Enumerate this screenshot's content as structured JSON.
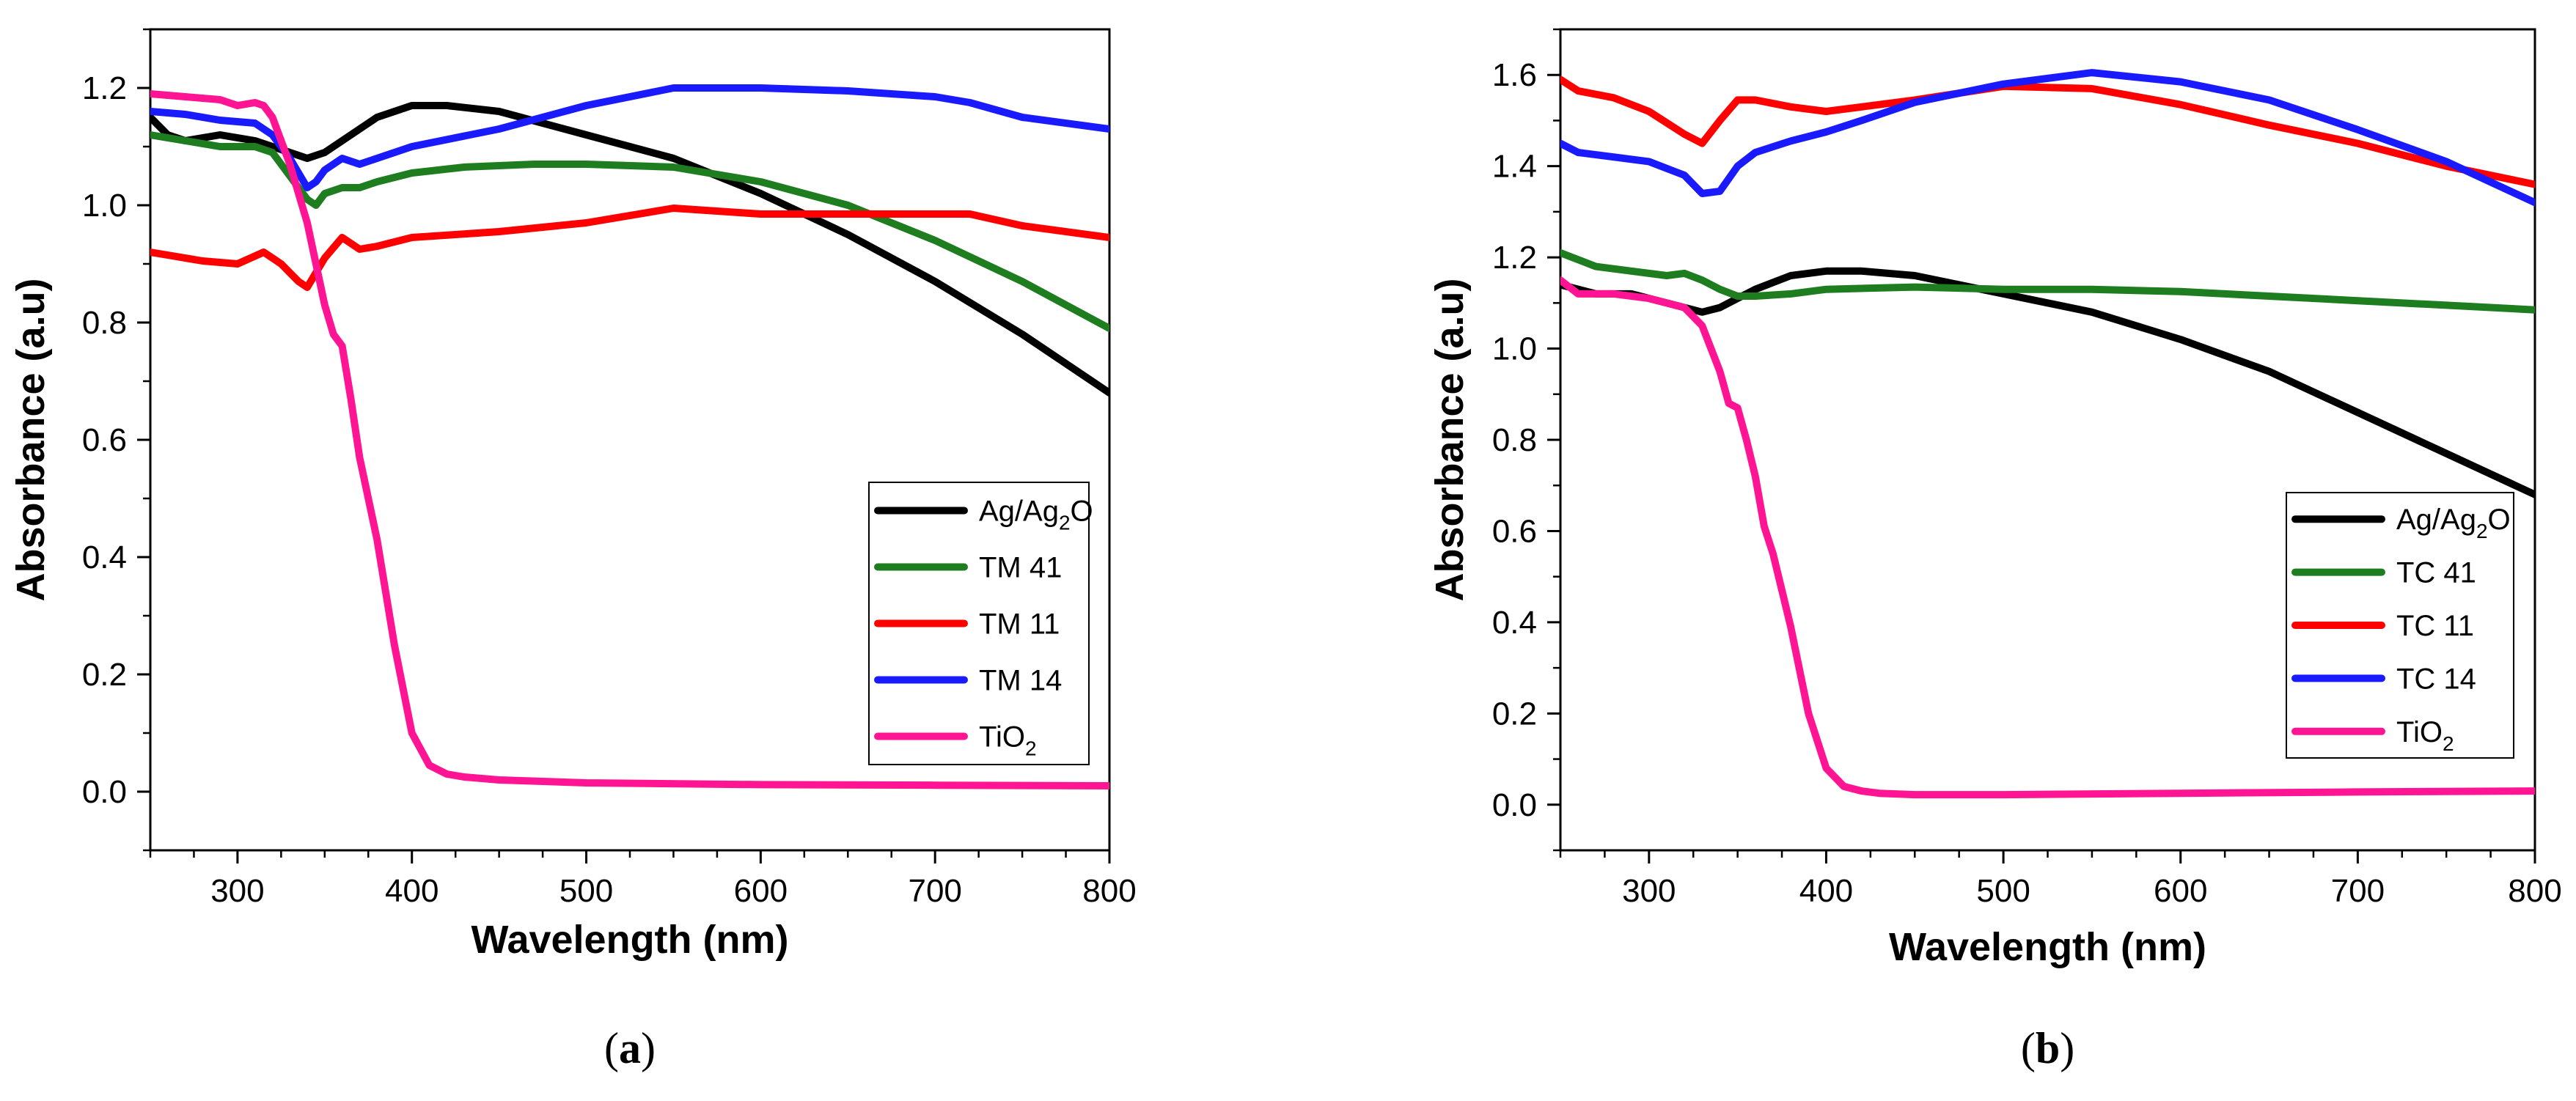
{
  "chart_data": [
    {
      "panel_label": "(a)",
      "panel_letter": "a",
      "type": "line",
      "xlabel": "Wavelength (nm)",
      "ylabel": "Absorbance (a.u)",
      "xlim": [
        250,
        800
      ],
      "ylim": [
        -0.1,
        1.3
      ],
      "xticks": [
        "300",
        "400",
        "500",
        "600",
        "700",
        "800"
      ],
      "yticks": [
        "0.0",
        "0.2",
        "0.4",
        "0.6",
        "0.8",
        "1.0",
        "1.2"
      ],
      "legend_position": "lower-right",
      "series": [
        {
          "name": "Ag/Ag2O",
          "label_main": "Ag/Ag",
          "label_sub": "2",
          "label_tail": "O",
          "color": "#000000",
          "x": [
            250,
            260,
            270,
            290,
            310,
            330,
            340,
            350,
            360,
            370,
            380,
            400,
            420,
            450,
            500,
            550,
            600,
            650,
            700,
            750,
            800
          ],
          "y": [
            1.15,
            1.12,
            1.11,
            1.12,
            1.11,
            1.09,
            1.08,
            1.09,
            1.11,
            1.13,
            1.15,
            1.17,
            1.17,
            1.16,
            1.12,
            1.08,
            1.02,
            0.95,
            0.87,
            0.78,
            0.68
          ]
        },
        {
          "name": "TM 41",
          "label_main": "TM 41",
          "label_sub": "",
          "label_tail": "",
          "color": "#1e7d1e",
          "x": [
            250,
            270,
            290,
            310,
            320,
            330,
            340,
            345,
            350,
            360,
            370,
            380,
            400,
            430,
            470,
            500,
            550,
            600,
            650,
            700,
            750,
            800
          ],
          "y": [
            1.12,
            1.11,
            1.1,
            1.1,
            1.09,
            1.05,
            1.01,
            1.0,
            1.02,
            1.03,
            1.03,
            1.04,
            1.055,
            1.065,
            1.07,
            1.07,
            1.065,
            1.04,
            1.0,
            0.94,
            0.87,
            0.79
          ]
        },
        {
          "name": "TM 11",
          "label_main": "TM 11",
          "label_sub": "",
          "label_tail": "",
          "color": "#ff0000",
          "x": [
            250,
            260,
            280,
            300,
            315,
            325,
            335,
            340,
            350,
            360,
            370,
            380,
            400,
            450,
            500,
            550,
            600,
            650,
            700,
            720,
            750,
            800
          ],
          "y": [
            0.92,
            0.915,
            0.905,
            0.9,
            0.92,
            0.9,
            0.87,
            0.86,
            0.91,
            0.945,
            0.925,
            0.93,
            0.945,
            0.955,
            0.97,
            0.995,
            0.985,
            0.985,
            0.985,
            0.985,
            0.965,
            0.945
          ]
        },
        {
          "name": "TM 14",
          "label_main": "TM 14",
          "label_sub": "",
          "label_tail": "",
          "color": "#1a1aff",
          "x": [
            250,
            270,
            290,
            310,
            320,
            330,
            340,
            345,
            350,
            360,
            370,
            380,
            400,
            450,
            500,
            550,
            600,
            650,
            700,
            720,
            750,
            800
          ],
          "y": [
            1.16,
            1.155,
            1.145,
            1.14,
            1.12,
            1.08,
            1.03,
            1.04,
            1.06,
            1.08,
            1.07,
            1.08,
            1.1,
            1.13,
            1.17,
            1.2,
            1.2,
            1.195,
            1.185,
            1.175,
            1.15,
            1.13
          ]
        },
        {
          "name": "TiO2",
          "label_main": "TiO",
          "label_sub": "2",
          "label_tail": "",
          "color": "#ff1493",
          "x": [
            250,
            270,
            290,
            300,
            310,
            315,
            320,
            330,
            340,
            350,
            355,
            360,
            365,
            370,
            380,
            390,
            400,
            410,
            420,
            430,
            450,
            500,
            600,
            700,
            800
          ],
          "y": [
            1.19,
            1.185,
            1.18,
            1.17,
            1.175,
            1.17,
            1.15,
            1.07,
            0.97,
            0.83,
            0.78,
            0.76,
            0.67,
            0.57,
            0.43,
            0.25,
            0.1,
            0.045,
            0.03,
            0.025,
            0.02,
            0.015,
            0.012,
            0.011,
            0.01
          ]
        }
      ]
    },
    {
      "panel_label": "(b)",
      "panel_letter": "b",
      "type": "line",
      "xlabel": "Wavelength (nm)",
      "ylabel": "Absorbance (a.u)",
      "xlim": [
        250,
        800
      ],
      "ylim": [
        -0.1,
        1.7
      ],
      "xticks": [
        "300",
        "400",
        "500",
        "600",
        "700",
        "800"
      ],
      "yticks": [
        "0.0",
        "0.2",
        "0.4",
        "0.6",
        "0.8",
        "1.0",
        "1.2",
        "1.4",
        "1.6"
      ],
      "legend_position": "lower-right",
      "series": [
        {
          "name": "Ag/Ag2O",
          "label_main": "Ag/Ag",
          "label_sub": "2",
          "label_tail": "O",
          "color": "#000000",
          "x": [
            250,
            270,
            290,
            310,
            330,
            340,
            350,
            360,
            380,
            400,
            420,
            450,
            500,
            550,
            600,
            650,
            700,
            750,
            800
          ],
          "y": [
            1.14,
            1.12,
            1.12,
            1.1,
            1.08,
            1.09,
            1.11,
            1.13,
            1.16,
            1.17,
            1.17,
            1.16,
            1.12,
            1.08,
            1.02,
            0.95,
            0.86,
            0.77,
            0.68
          ]
        },
        {
          "name": "TC 41",
          "label_main": "TC 41",
          "label_sub": "",
          "label_tail": "",
          "color": "#1e7d1e",
          "x": [
            250,
            270,
            290,
            310,
            320,
            330,
            340,
            350,
            360,
            380,
            400,
            450,
            500,
            550,
            600,
            650,
            700,
            750,
            800
          ],
          "y": [
            1.21,
            1.18,
            1.17,
            1.16,
            1.165,
            1.15,
            1.13,
            1.115,
            1.115,
            1.12,
            1.13,
            1.135,
            1.13,
            1.13,
            1.125,
            1.115,
            1.105,
            1.095,
            1.085
          ]
        },
        {
          "name": "TC 11",
          "label_main": "TC 11",
          "label_sub": "",
          "label_tail": "",
          "color": "#ff0000",
          "x": [
            250,
            260,
            280,
            300,
            320,
            330,
            340,
            350,
            360,
            380,
            400,
            420,
            450,
            500,
            550,
            600,
            650,
            700,
            750,
            800
          ],
          "y": [
            1.59,
            1.565,
            1.55,
            1.52,
            1.47,
            1.45,
            1.5,
            1.545,
            1.545,
            1.53,
            1.52,
            1.53,
            1.545,
            1.575,
            1.57,
            1.535,
            1.49,
            1.45,
            1.4,
            1.36
          ]
        },
        {
          "name": "TC 14",
          "label_main": "TC 14",
          "label_sub": "",
          "label_tail": "",
          "color": "#1a1aff",
          "x": [
            250,
            260,
            280,
            300,
            320,
            330,
            340,
            350,
            360,
            380,
            400,
            420,
            450,
            500,
            550,
            600,
            650,
            700,
            750,
            800
          ],
          "y": [
            1.45,
            1.43,
            1.42,
            1.41,
            1.38,
            1.34,
            1.345,
            1.4,
            1.43,
            1.455,
            1.475,
            1.5,
            1.54,
            1.58,
            1.605,
            1.585,
            1.545,
            1.48,
            1.41,
            1.32
          ]
        },
        {
          "name": "TiO2",
          "label_main": "TiO",
          "label_sub": "2",
          "label_tail": "",
          "color": "#ff1493",
          "x": [
            250,
            260,
            280,
            300,
            320,
            330,
            340,
            345,
            350,
            355,
            360,
            365,
            370,
            380,
            390,
            400,
            410,
            420,
            430,
            450,
            500,
            600,
            700,
            800
          ],
          "y": [
            1.15,
            1.12,
            1.12,
            1.11,
            1.09,
            1.05,
            0.95,
            0.88,
            0.87,
            0.8,
            0.72,
            0.61,
            0.55,
            0.39,
            0.2,
            0.08,
            0.04,
            0.03,
            0.025,
            0.022,
            0.022,
            0.025,
            0.028,
            0.03
          ]
        }
      ]
    }
  ]
}
